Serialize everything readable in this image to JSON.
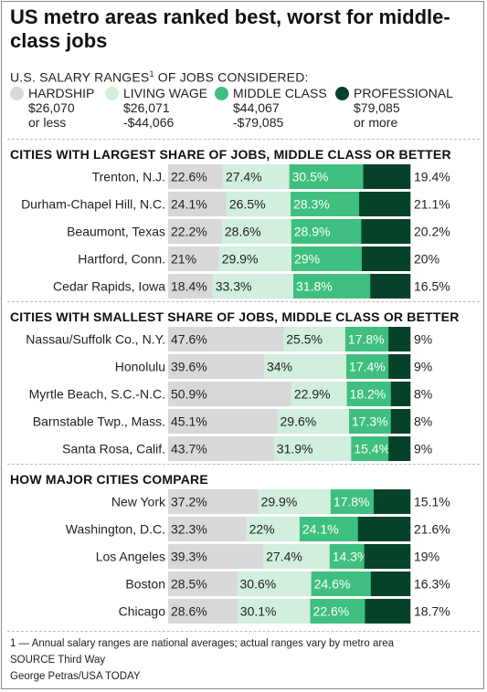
{
  "title": "US metro areas ranked best, worst for middle-class jobs",
  "subtitle": "U.S. SALARY RANGES",
  "subtitle_mark": "1",
  "subtitle_suffix": " OF JOBS CONSIDERED:",
  "legend": [
    {
      "name": "HARDSHIP",
      "range": "$26,070\nor less",
      "color": "#d8d8d8"
    },
    {
      "name": "LIVING WAGE",
      "range": "$26,071\n-$44,066",
      "color": "#d2eedd"
    },
    {
      "name": "MIDDLE CLASS",
      "range": "$44,067\n-$79,085",
      "color": "#3fbf7f"
    },
    {
      "name": "PROFESSIONAL",
      "range": "$79,085\nor more",
      "color": "#06422a"
    }
  ],
  "colors": {
    "hardship": "#d8d8d8",
    "living_wage": "#d2eedd",
    "middle_class": "#3fbf7f",
    "professional": "#06422a"
  },
  "chart_data": {
    "type": "bar",
    "stacked": true,
    "horizontal": true,
    "series_names": [
      "HARDSHIP",
      "LIVING WAGE",
      "MIDDLE CLASS",
      "PROFESSIONAL"
    ],
    "groups": [
      {
        "title": "CITIES WITH LARGEST SHARE OF JOBS, MIDDLE CLASS OR BETTER",
        "rows": [
          {
            "city": "Trenton, N.J.",
            "values": [
              22.6,
              27.4,
              30.5,
              19.4
            ],
            "labels": [
              "22.6%",
              "27.4%",
              "30.5%",
              "19.4%"
            ]
          },
          {
            "city": "Durham-Chapel Hill, N.C.",
            "values": [
              24.1,
              26.5,
              28.3,
              21.1
            ],
            "labels": [
              "24.1%",
              "26.5%",
              "28.3%",
              "21.1%"
            ]
          },
          {
            "city": "Beaumont, Texas",
            "values": [
              22.2,
              28.6,
              28.9,
              20.2
            ],
            "labels": [
              "22.2%",
              "28.6%",
              "28.9%",
              "20.2%"
            ]
          },
          {
            "city": "Hartford, Conn.",
            "values": [
              21,
              29.9,
              29,
              20
            ],
            "labels": [
              "21%",
              "29.9%",
              "29%",
              "20%"
            ]
          },
          {
            "city": "Cedar Rapids, Iowa",
            "values": [
              18.4,
              33.3,
              31.8,
              16.5
            ],
            "labels": [
              "18.4%",
              "33.3%",
              "31.8%",
              "16.5%"
            ]
          }
        ]
      },
      {
        "title": "CITIES WITH SMALLEST SHARE OF JOBS, MIDDLE CLASS OR BETTER",
        "rows": [
          {
            "city": "Nassau/Suffolk Co., N.Y.",
            "values": [
              47.6,
              25.5,
              17.8,
              9
            ],
            "labels": [
              "47.6%",
              "25.5%",
              "17.8%",
              "9%"
            ]
          },
          {
            "city": "Honolulu",
            "values": [
              39.6,
              34,
              17.4,
              9
            ],
            "labels": [
              "39.6%",
              "34%",
              "17.4%",
              "9%"
            ]
          },
          {
            "city": "Myrtle Beach, S.C.-N.C.",
            "values": [
              50.9,
              22.9,
              18.2,
              8
            ],
            "labels": [
              "50.9%",
              "22.9%",
              "18.2%",
              "8%"
            ]
          },
          {
            "city": "Barnstable Twp., Mass.",
            "values": [
              45.1,
              29.6,
              17.3,
              8
            ],
            "labels": [
              "45.1%",
              "29.6%",
              "17.3%",
              "8%"
            ]
          },
          {
            "city": "Santa Rosa, Calif.",
            "values": [
              43.7,
              31.9,
              15.4,
              9
            ],
            "labels": [
              "43.7%",
              "31.9%",
              "15.4%",
              "9%"
            ]
          }
        ]
      },
      {
        "title": "HOW MAJOR CITIES COMPARE",
        "rows": [
          {
            "city": "New York",
            "values": [
              37.2,
              29.9,
              17.8,
              15.1
            ],
            "labels": [
              "37.2%",
              "29.9%",
              "17.8%",
              "15.1%"
            ]
          },
          {
            "city": "Washington, D.C.",
            "values": [
              32.3,
              22,
              24.1,
              21.6
            ],
            "labels": [
              "32.3%",
              "22%",
              "24.1%",
              "21.6%"
            ]
          },
          {
            "city": "Los Angeles",
            "values": [
              39.3,
              27.4,
              14.3,
              19
            ],
            "labels": [
              "39.3%",
              "27.4%",
              "14.3%",
              "19%"
            ]
          },
          {
            "city": "Boston",
            "values": [
              28.5,
              30.6,
              24.6,
              16.3
            ],
            "labels": [
              "28.5%",
              "30.6%",
              "24.6%",
              "16.3%"
            ]
          },
          {
            "city": "Chicago",
            "values": [
              28.6,
              30.1,
              22.6,
              18.7
            ],
            "labels": [
              "28.6%",
              "30.1%",
              "22.6%",
              "18.7%"
            ]
          }
        ]
      }
    ]
  },
  "footnotes": {
    "note": "1 — Annual salary ranges are national averages; actual ranges vary by metro area",
    "source": "SOURCE Third Way",
    "credit": "George Petras/USA TODAY"
  }
}
